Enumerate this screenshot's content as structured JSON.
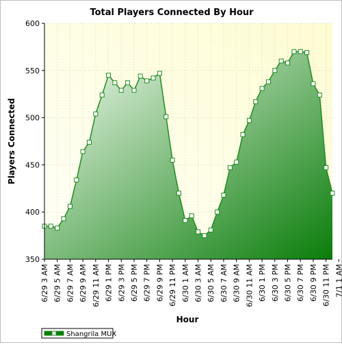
{
  "chart_data": {
    "type": "area",
    "title": "Total Players Connected By Hour",
    "xlabel": "Hour",
    "ylabel": "Players Connected",
    "ylim": [
      350,
      600
    ],
    "yticks": [
      350,
      400,
      450,
      500,
      550,
      600
    ],
    "xticks": [
      "6/29 3 AM",
      "6/29 5 AM",
      "6/29 7 AM",
      "6/29 9 AM",
      "6/29 11 AM",
      "6/29 1 PM",
      "6/29 3 PM",
      "6/29 5 PM",
      "6/29 7 PM",
      "6/29 9 PM",
      "6/29 11 PM",
      "6/30 1 AM",
      "6/30 3 AM",
      "6/30 5 AM",
      "6/30 7 AM",
      "6/30 9 AM",
      "6/30 11 AM",
      "6/30 1 PM",
      "6/30 3 PM",
      "6/30 5 PM",
      "6/30 7 PM",
      "6/30 9 PM",
      "6/30 11 PM",
      "7/1 1 AM"
    ],
    "x": [
      "6/29 3 AM",
      "6/29 4 AM",
      "6/29 5 AM",
      "6/29 6 AM",
      "6/29 7 AM",
      "6/29 8 AM",
      "6/29 9 AM",
      "6/29 10 AM",
      "6/29 11 AM",
      "6/29 12 PM",
      "6/29 1 PM",
      "6/29 2 PM",
      "6/29 3 PM",
      "6/29 4 PM",
      "6/29 5 PM",
      "6/29 6 PM",
      "6/29 7 PM",
      "6/29 8 PM",
      "6/29 9 PM",
      "6/29 10 PM",
      "6/29 11 PM",
      "6/30 12 AM",
      "6/30 1 AM",
      "6/30 2 AM",
      "6/30 3 AM",
      "6/30 4 AM",
      "6/30 5 AM",
      "6/30 6 AM",
      "6/30 7 AM",
      "6/30 8 AM",
      "6/30 9 AM",
      "6/30 10 AM",
      "6/30 11 AM",
      "6/30 12 PM",
      "6/30 1 PM",
      "6/30 2 PM",
      "6/30 3 PM",
      "6/30 4 PM",
      "6/30 5 PM",
      "6/30 6 PM",
      "6/30 7 PM",
      "6/30 8 PM",
      "6/30 9 PM",
      "6/30 10 PM",
      "6/30 11 PM",
      "7/1 12 AM"
    ],
    "series": [
      {
        "name": "Shangrila MUX",
        "values": [
          385,
          385,
          383,
          393,
          406,
          434,
          464,
          474,
          504,
          524,
          545,
          537,
          529,
          537,
          529,
          544,
          539,
          542,
          547,
          501,
          455,
          420,
          391,
          396,
          379,
          375,
          381,
          400,
          418,
          447,
          453,
          482,
          497,
          517,
          531,
          538,
          550,
          560,
          558,
          570,
          570,
          569,
          536,
          524,
          447,
          420
        ]
      }
    ],
    "grid": true,
    "legend_position": "bottom-left",
    "colors": {
      "line": "#1e8c1e",
      "fill_light": "#f4fbf1",
      "fill_dark": "#0a7d0a",
      "plot_bg_light": "#fffff8",
      "plot_bg_dark": "#fdfcd2",
      "grid": "#d8d8b8",
      "marker_fill": "#ffffff"
    }
  }
}
